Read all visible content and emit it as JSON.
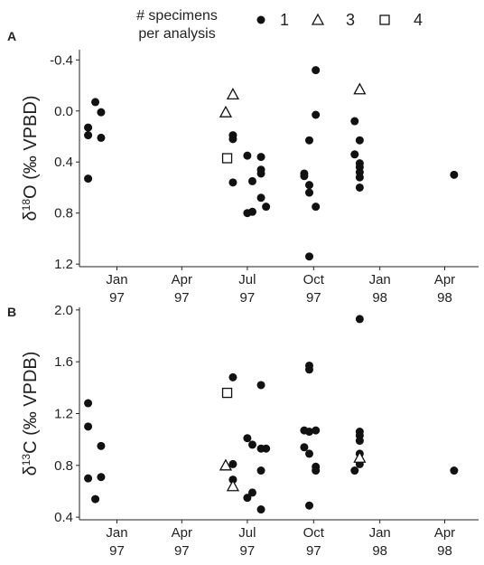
{
  "legend": {
    "title_line1": "# specimens",
    "title_line2": "per analysis",
    "entries": [
      {
        "label": "1",
        "marker": "circle"
      },
      {
        "label": "3",
        "marker": "triangle"
      },
      {
        "label": "4",
        "marker": "square"
      }
    ]
  },
  "chart_data": [
    {
      "type": "scatter",
      "panel": "A",
      "ylabel_main": "δ",
      "ylabel_sup": "18",
      "ylabel_rest": "O (‰ VPBD)",
      "y_reversed": true,
      "ylim": [
        -0.48,
        1.22
      ],
      "xlim": [
        "1996-11-10",
        "1998-05-18"
      ],
      "yticks": [
        -0.4,
        0.0,
        0.4,
        0.8,
        1.2
      ],
      "ytick_labels": [
        "-0.4",
        "0.0",
        "0.4",
        "0.8",
        "1.2"
      ],
      "xticks": [
        {
          "date": "1997-01-01",
          "line1": "Jan",
          "line2": "97"
        },
        {
          "date": "1997-04-01",
          "line1": "Apr",
          "line2": "97"
        },
        {
          "date": "1997-07-01",
          "line1": "Jul",
          "line2": "97"
        },
        {
          "date": "1997-10-01",
          "line1": "Oct",
          "line2": "97"
        },
        {
          "date": "1998-01-01",
          "line1": "Jan",
          "line2": "98"
        },
        {
          "date": "1998-04-01",
          "line1": "Apr",
          "line2": "98"
        }
      ],
      "series": [
        {
          "marker": "circle",
          "points": [
            {
              "x": "1996-11-22",
              "y": 0.13
            },
            {
              "x": "1996-11-22",
              "y": 0.19
            },
            {
              "x": "1996-11-22",
              "y": 0.53
            },
            {
              "x": "1996-12-02",
              "y": -0.07
            },
            {
              "x": "1996-12-10",
              "y": 0.01
            },
            {
              "x": "1996-12-10",
              "y": 0.21
            },
            {
              "x": "1997-06-11",
              "y": 0.19
            },
            {
              "x": "1997-06-11",
              "y": 0.22
            },
            {
              "x": "1997-06-11",
              "y": 0.56
            },
            {
              "x": "1997-07-01",
              "y": 0.35
            },
            {
              "x": "1997-07-01",
              "y": 0.8
            },
            {
              "x": "1997-07-08",
              "y": 0.55
            },
            {
              "x": "1997-07-08",
              "y": 0.79
            },
            {
              "x": "1997-07-20",
              "y": 0.36
            },
            {
              "x": "1997-07-20",
              "y": 0.46
            },
            {
              "x": "1997-07-20",
              "y": 0.49
            },
            {
              "x": "1997-07-20",
              "y": 0.68
            },
            {
              "x": "1997-07-27",
              "y": 0.75
            },
            {
              "x": "1997-09-18",
              "y": 0.49
            },
            {
              "x": "1997-09-18",
              "y": 0.51
            },
            {
              "x": "1997-09-25",
              "y": 0.23
            },
            {
              "x": "1997-09-25",
              "y": 0.58
            },
            {
              "x": "1997-09-25",
              "y": 0.64
            },
            {
              "x": "1997-09-25",
              "y": 1.14
            },
            {
              "x": "1997-10-04",
              "y": -0.32
            },
            {
              "x": "1997-10-04",
              "y": 0.03
            },
            {
              "x": "1997-10-04",
              "y": 0.75
            },
            {
              "x": "1997-11-27",
              "y": 0.08
            },
            {
              "x": "1997-11-27",
              "y": 0.34
            },
            {
              "x": "1997-12-04",
              "y": 0.23
            },
            {
              "x": "1997-12-04",
              "y": 0.41
            },
            {
              "x": "1997-12-04",
              "y": 0.44
            },
            {
              "x": "1997-12-04",
              "y": 0.48
            },
            {
              "x": "1997-12-04",
              "y": 0.52
            },
            {
              "x": "1997-12-04",
              "y": 0.6
            },
            {
              "x": "1998-04-14",
              "y": 0.5
            }
          ]
        },
        {
          "marker": "triangle",
          "points": [
            {
              "x": "1997-06-01",
              "y": 0.01
            },
            {
              "x": "1997-06-11",
              "y": -0.13
            },
            {
              "x": "1997-12-04",
              "y": -0.17
            }
          ]
        },
        {
          "marker": "square",
          "points": [
            {
              "x": "1997-06-03",
              "y": 0.37
            }
          ]
        }
      ]
    },
    {
      "type": "scatter",
      "panel": "B",
      "ylabel_main": "δ",
      "ylabel_sup": "13",
      "ylabel_rest": "C (‰ VPDB)",
      "y_reversed": false,
      "ylim": [
        0.38,
        2.02
      ],
      "xlim": [
        "1996-11-10",
        "1998-05-18"
      ],
      "yticks": [
        0.4,
        0.8,
        1.2,
        1.6,
        2.0
      ],
      "ytick_labels": [
        "0.4",
        "0.8",
        "1.2",
        "1.6",
        "2.0"
      ],
      "xticks": [
        {
          "date": "1997-01-01",
          "line1": "Jan",
          "line2": "97"
        },
        {
          "date": "1997-04-01",
          "line1": "Apr",
          "line2": "97"
        },
        {
          "date": "1997-07-01",
          "line1": "Jul",
          "line2": "97"
        },
        {
          "date": "1997-10-01",
          "line1": "Oct",
          "line2": "97"
        },
        {
          "date": "1998-01-01",
          "line1": "Jan",
          "line2": "98"
        },
        {
          "date": "1998-04-01",
          "line1": "Apr",
          "line2": "98"
        }
      ],
      "series": [
        {
          "marker": "circle",
          "points": [
            {
              "x": "1996-11-22",
              "y": 1.28
            },
            {
              "x": "1996-11-22",
              "y": 1.1
            },
            {
              "x": "1996-11-22",
              "y": 0.7
            },
            {
              "x": "1996-12-02",
              "y": 0.54
            },
            {
              "x": "1996-12-10",
              "y": 0.95
            },
            {
              "x": "1996-12-10",
              "y": 0.71
            },
            {
              "x": "1997-06-11",
              "y": 1.48
            },
            {
              "x": "1997-06-11",
              "y": 0.81
            },
            {
              "x": "1997-06-11",
              "y": 0.69
            },
            {
              "x": "1997-07-01",
              "y": 1.01
            },
            {
              "x": "1997-07-01",
              "y": 0.55
            },
            {
              "x": "1997-07-08",
              "y": 0.96
            },
            {
              "x": "1997-07-08",
              "y": 0.59
            },
            {
              "x": "1997-07-20",
              "y": 1.42
            },
            {
              "x": "1997-07-20",
              "y": 0.93
            },
            {
              "x": "1997-07-20",
              "y": 0.76
            },
            {
              "x": "1997-07-20",
              "y": 0.46
            },
            {
              "x": "1997-07-27",
              "y": 0.93
            },
            {
              "x": "1997-09-18",
              "y": 1.07
            },
            {
              "x": "1997-09-18",
              "y": 0.94
            },
            {
              "x": "1997-09-25",
              "y": 1.57
            },
            {
              "x": "1997-09-25",
              "y": 1.54
            },
            {
              "x": "1997-09-25",
              "y": 1.06
            },
            {
              "x": "1997-09-25",
              "y": 0.89
            },
            {
              "x": "1997-09-25",
              "y": 0.49
            },
            {
              "x": "1997-10-04",
              "y": 1.07
            },
            {
              "x": "1997-10-04",
              "y": 0.79
            },
            {
              "x": "1997-10-04",
              "y": 0.76
            },
            {
              "x": "1997-11-27",
              "y": 0.76
            },
            {
              "x": "1997-12-04",
              "y": 1.93
            },
            {
              "x": "1997-12-04",
              "y": 1.06
            },
            {
              "x": "1997-12-04",
              "y": 1.03
            },
            {
              "x": "1997-12-04",
              "y": 0.99
            },
            {
              "x": "1997-12-04",
              "y": 0.89
            },
            {
              "x": "1997-12-04",
              "y": 0.81
            },
            {
              "x": "1998-04-14",
              "y": 0.76
            }
          ]
        },
        {
          "marker": "triangle",
          "points": [
            {
              "x": "1997-06-01",
              "y": 0.8
            },
            {
              "x": "1997-06-11",
              "y": 0.64
            },
            {
              "x": "1997-12-04",
              "y": 0.86
            }
          ]
        },
        {
          "marker": "square",
          "points": [
            {
              "x": "1997-06-03",
              "y": 1.36
            }
          ]
        }
      ]
    }
  ]
}
